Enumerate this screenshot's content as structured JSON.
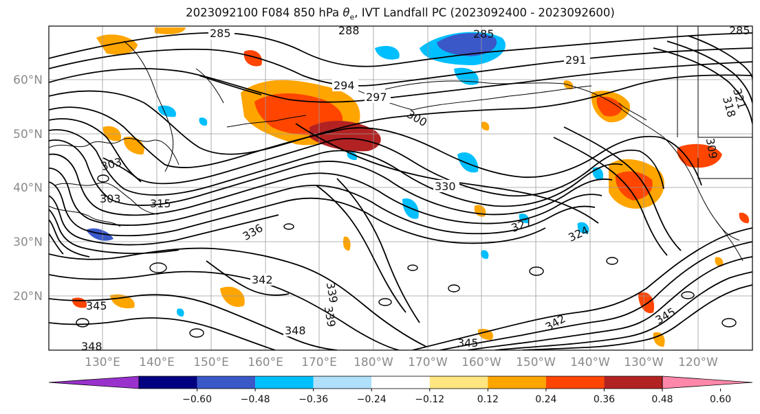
{
  "title_pre": "2023092100 F084 850 hPa ",
  "title_theta": "θ",
  "title_sub": "e",
  "title_post": ", IVT Landfall PC (2023092400 - 2023092600)",
  "lat_labels": [
    "60°N",
    "50°N",
    "40°N",
    "30°N",
    "20°N"
  ],
  "lon_labels": [
    "130°E",
    "140°E",
    "150°E",
    "160°E",
    "170°E",
    "180°W",
    "170°W",
    "160°W",
    "150°W",
    "140°W",
    "130°W",
    "120°W"
  ],
  "contour_labels": [
    "285",
    "288",
    "285",
    "291",
    "294",
    "297",
    "300",
    "303",
    "315",
    "303",
    "336",
    "330",
    "327",
    "324",
    "342",
    "339",
    "339",
    "345",
    "348",
    "348",
    "345",
    "342",
    "345",
    "321",
    "318",
    "309",
    "285"
  ],
  "colorbar": {
    "colors": [
      "#9932cc",
      "#000080",
      "#3a58c8",
      "#00bfff",
      "#b0e0fa",
      "#ffffff",
      "#ffe680",
      "#ffa500",
      "#ff4500",
      "#b22222",
      "#ff88aa"
    ],
    "tick_labels": [
      "−0.60",
      "−0.48",
      "−0.36",
      "−0.24",
      "−0.12",
      "0.12",
      "0.24",
      "0.36",
      "0.48",
      "0.60"
    ]
  }
}
